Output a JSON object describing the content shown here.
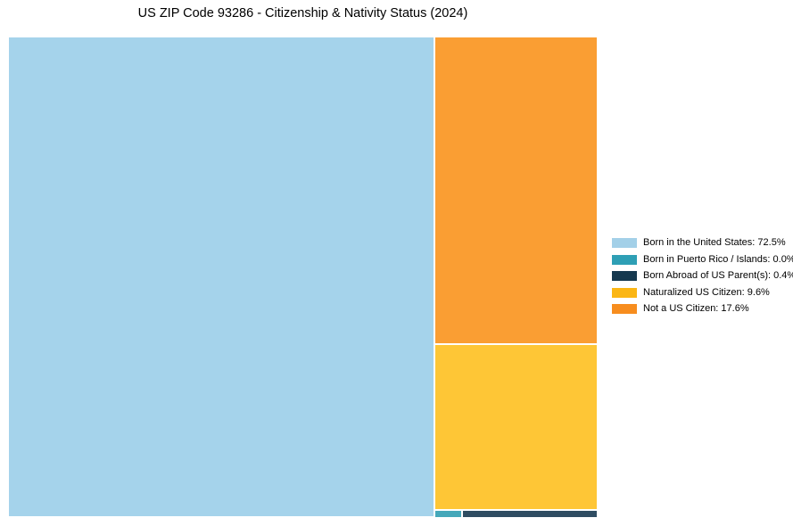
{
  "title": "US ZIP Code 93286 - Citizenship & Nativity Status (2024)",
  "items": [
    {
      "label": "Born in the United States",
      "value": 72.5,
      "display": "Born in the United States: 72.5%",
      "legend_color": "#A3D0E8",
      "tile_color": "#A5D3EB"
    },
    {
      "label": "Born in Puerto Rico / Islands",
      "value": 0.0,
      "display": "Born in Puerto Rico / Islands: 0.0%",
      "legend_color": "#2E9FB5",
      "tile_color": "#45A8BA"
    },
    {
      "label": "Born Abroad of US Parent(s)",
      "value": 0.4,
      "display": "Born Abroad of US Parent(s): 0.4%",
      "legend_color": "#15384F",
      "tile_color": "#2F4D62"
    },
    {
      "label": "Naturalized US Citizen",
      "value": 9.6,
      "display": "Naturalized US Citizen: 9.6%",
      "legend_color": "#FBB614",
      "tile_color": "#FEC636"
    },
    {
      "label": "Not a US Citizen",
      "value": 17.6,
      "display": "Not a US Citizen: 17.6%",
      "legend_color": "#F78D1E",
      "tile_color": "#FA9E33"
    }
  ],
  "chart_data": {
    "type": "treemap",
    "title": "US ZIP Code 93286 - Citizenship & Nativity Status (2024)",
    "categories": [
      "Born in the United States",
      "Born in Puerto Rico / Islands",
      "Born Abroad of US Parent(s)",
      "Naturalized US Citizen",
      "Not a US Citizen"
    ],
    "values": [
      72.5,
      0.0,
      0.4,
      9.6,
      17.6
    ],
    "unit": "%",
    "legend_position": "right",
    "grid": false,
    "colors": [
      "#A3D0E8",
      "#2E9FB5",
      "#15384F",
      "#FBB614",
      "#F78D1E"
    ],
    "background_color": "#FFFFFF"
  }
}
